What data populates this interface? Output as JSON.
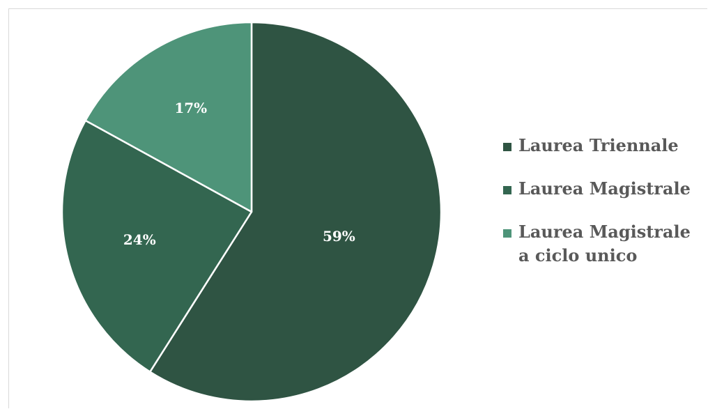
{
  "chart_data": {
    "type": "pie",
    "categories": [
      "Laurea Triennale",
      "Laurea Magistrale",
      "Laurea Magistrale a ciclo unico"
    ],
    "values": [
      59,
      24,
      17
    ],
    "data_labels": [
      "59%",
      "24%",
      "17%"
    ],
    "colors": [
      "#2f5443",
      "#336650",
      "#4e9479"
    ],
    "start_angle_deg": 0,
    "direction": "clockwise",
    "legend_position": "right"
  }
}
